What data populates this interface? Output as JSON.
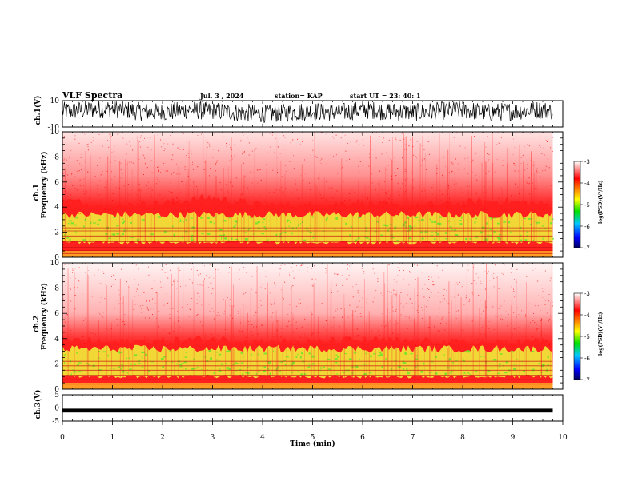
{
  "header": {
    "title": "VLF Spectra",
    "date": "Jul. 3 , 2024",
    "station": "station= KAP",
    "start_ut": "start UT =  23: 40: 1"
  },
  "colors": {
    "spectrum_low": "#ffffff",
    "spectrum_mid": "#ff2a2a",
    "spectrum_band": "#f0ec3a",
    "spectrum_strong": "#6ee32a",
    "trace": "#000000"
  },
  "chart_data": [
    {
      "type": "line",
      "panel": "ch.1 waveform",
      "ylabel": "ch.1(V)",
      "ylim": [
        -10,
        10
      ],
      "yticks": [
        "10",
        "-10"
      ],
      "xlim": [
        0,
        10
      ],
      "series": [
        {
          "x": [
            0,
            0.5,
            1,
            1.5,
            2,
            2.5,
            3,
            3.5,
            4,
            4.5,
            5,
            5.5,
            6,
            6.5,
            7,
            7.5,
            8,
            8.5,
            9,
            9.5,
            9.8
          ],
          "values": [
            2,
            3,
            4,
            2,
            1,
            3,
            2,
            1,
            0,
            1,
            2,
            1,
            3,
            2,
            1,
            2,
            3,
            1,
            2,
            3,
            2
          ]
        }
      ]
    },
    {
      "type": "heatmap",
      "panel": "ch.1 spectrogram",
      "ylabel": "ch.1\nFrequency (kHz)",
      "ylabel_line1": "ch.1",
      "ylabel_line2": "Frequency (kHz)",
      "ylim": [
        0,
        10
      ],
      "yticks": [
        "0",
        "2",
        "4",
        "6",
        "8",
        "10"
      ],
      "xlim": [
        0,
        10
      ],
      "data_extent_min": 9.8,
      "colorbar": {
        "label": "log(PSD)(V²/Hz)",
        "range": [
          -7,
          -3
        ],
        "ticks": [
          "-3",
          "-4",
          "-5",
          "-6",
          "-7"
        ]
      },
      "band_top_khz": [
        4.6,
        4.0,
        4.3,
        4.8,
        4.2,
        4.1,
        4.4,
        4.0,
        4.3,
        4.5,
        4.2
      ],
      "strong_band_khz": [
        1.2,
        3.4
      ],
      "horizontal_lines_khz": [
        0.3,
        0.55,
        0.8,
        1.25,
        1.7,
        2.1,
        2.35
      ]
    },
    {
      "type": "heatmap",
      "panel": "ch.2 spectrogram",
      "ylabel_line1": "ch.2",
      "ylabel_line2": "Frequency (kHz)",
      "ylim": [
        0,
        10
      ],
      "yticks": [
        "0",
        "2",
        "4",
        "6",
        "8",
        "10"
      ],
      "xlim": [
        0,
        10
      ],
      "data_extent_min": 9.8,
      "colorbar": {
        "label": "log(PSD)(V²/Hz)",
        "range": [
          -7,
          -3
        ],
        "ticks": [
          "-3",
          "-4",
          "-5",
          "-6",
          "-7"
        ]
      },
      "band_top_khz": [
        3.9,
        3.7,
        3.8,
        4.0,
        3.8,
        3.7,
        3.9,
        3.8,
        3.7,
        3.6,
        3.9
      ],
      "strong_band_khz": [
        1.0,
        3.2
      ],
      "horizontal_lines_khz": [
        0.4,
        0.75,
        1.1,
        1.5,
        1.85,
        2.2
      ]
    },
    {
      "type": "line",
      "panel": "ch.3 waveform",
      "ylabel": "ch.3(V)",
      "ylim": [
        -5,
        5
      ],
      "yticks": [
        "5",
        "0",
        "-5"
      ],
      "xlim": [
        0,
        10
      ],
      "xlabel": "Time (min)",
      "xticks": [
        "0",
        "1",
        "2",
        "3",
        "4",
        "5",
        "6",
        "7",
        "8",
        "9",
        "10"
      ],
      "series": [
        {
          "x": [
            0,
            9.8
          ],
          "values": [
            -1,
            -1
          ],
          "amplitude": 1.2
        }
      ]
    }
  ]
}
